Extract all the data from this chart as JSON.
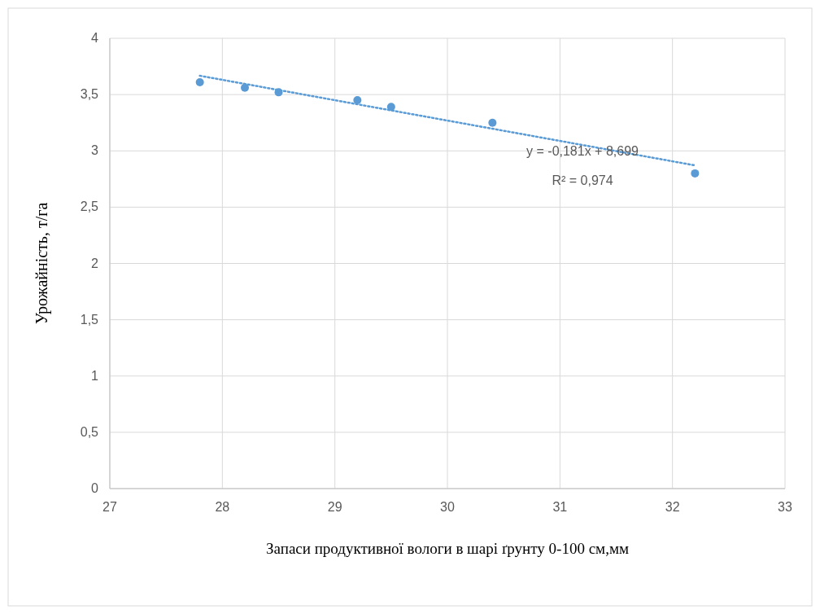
{
  "chart_data": {
    "type": "scatter",
    "xlabel": "Запаси продуктивної вологи в шарі ґрунту 0-100 см,мм",
    "ylabel": "Урожайність, т/га",
    "xlim": [
      27,
      33
    ],
    "xticks": [
      27,
      28,
      29,
      30,
      31,
      32,
      33
    ],
    "ylim": [
      0,
      4
    ],
    "yticks": [
      0,
      {
        "value": 0.5,
        "label": "0,5"
      },
      1,
      {
        "value": 1.5,
        "label": "1,5"
      },
      2,
      {
        "value": 2.5,
        "label": "2,5"
      },
      3,
      {
        "value": 3.5,
        "label": "3,5"
      },
      4
    ],
    "grid": true,
    "series": [
      {
        "color": "#5b9bd5",
        "marker": "circle",
        "x": [
          27.8,
          28.2,
          28.5,
          29.2,
          29.5,
          30.4,
          32.2
        ],
        "values": [
          3.61,
          3.56,
          3.52,
          3.45,
          3.39,
          3.25,
          2.8
        ]
      },
      {
        "type": "line",
        "color": "#5b9bd5",
        "marker": "none",
        "line_style": "dotted",
        "x": [
          27.8,
          32.2
        ],
        "values": [
          3.667,
          2.871
        ]
      }
    ],
    "annotations": [
      "y = -0,181x + 8,699",
      "R² = 0,974"
    ]
  }
}
